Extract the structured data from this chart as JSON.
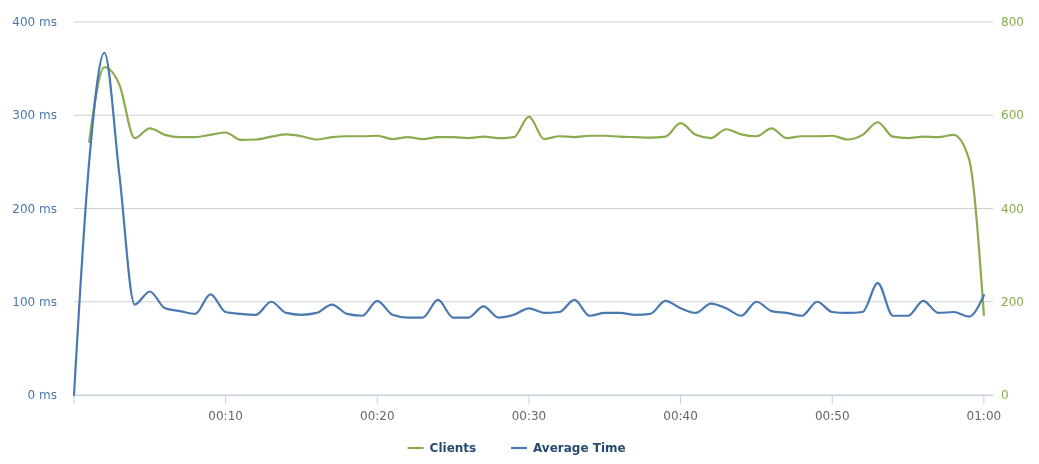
{
  "chart_data": {
    "type": "line",
    "x": [
      0,
      1,
      2,
      3,
      4,
      5,
      6,
      7,
      8,
      9,
      10,
      11,
      12,
      13,
      14,
      15,
      16,
      17,
      18,
      19,
      20,
      21,
      22,
      23,
      24,
      25,
      26,
      27,
      28,
      29,
      30,
      31,
      32,
      33,
      34,
      35,
      36,
      37,
      38,
      39,
      40,
      41,
      42,
      43,
      44,
      45,
      46,
      47,
      48,
      49,
      50,
      51,
      52,
      53,
      54,
      55,
      56,
      57,
      58,
      59,
      60
    ],
    "xlim": [
      0,
      60.6
    ],
    "xticks": [
      {
        "value": 0,
        "label": null
      },
      {
        "value": 10,
        "label": "00:10"
      },
      {
        "value": 20,
        "label": "00:20"
      },
      {
        "value": 30,
        "label": "00:30"
      },
      {
        "value": 40,
        "label": "00:40"
      },
      {
        "value": 50,
        "label": "00:50"
      },
      {
        "value": 60,
        "label": "01:00"
      }
    ],
    "ylim": [
      0,
      400
    ],
    "yticks": [
      {
        "value": 0,
        "label": "0 ms"
      },
      {
        "value": 100,
        "label": "100 ms"
      },
      {
        "value": 200,
        "label": "200 ms"
      },
      {
        "value": 300,
        "label": "300 ms"
      },
      {
        "value": 400,
        "label": "400 ms"
      }
    ],
    "y2lim": [
      0,
      800
    ],
    "y2ticks": [
      0,
      200,
      400,
      600,
      800
    ],
    "grid": "y",
    "legend": "bottom",
    "marker": "none",
    "series": [
      {
        "name": "Clients",
        "color": "#8aab4e",
        "axis": "y2",
        "values": [
          null,
          543,
          703,
          665,
          551,
          572,
          558,
          553,
          553,
          558,
          563,
          547,
          548,
          554,
          559,
          555,
          548,
          553,
          555,
          555,
          556,
          549,
          553,
          549,
          553,
          553,
          551,
          554,
          551,
          553,
          597,
          549,
          555,
          553,
          556,
          556,
          554,
          553,
          552,
          554,
          583,
          558,
          551,
          570,
          559,
          555,
          572,
          551,
          555,
          555,
          556,
          548,
          558,
          585,
          554,
          551,
          554,
          553,
          558,
          508,
          172
        ]
      },
      {
        "name": "Average Time",
        "color": "#4a78b0",
        "values": [
          0,
          250,
          367,
          235,
          97,
          111,
          93,
          90,
          87,
          108,
          89,
          87,
          86,
          100,
          88,
          86,
          88,
          97,
          87,
          85,
          101,
          86,
          83,
          83,
          102,
          83,
          83,
          95,
          83,
          86,
          93,
          88,
          89,
          102,
          85,
          88,
          88,
          86,
          87,
          101,
          93,
          88,
          98,
          93,
          85,
          100,
          90,
          88,
          85,
          100,
          89,
          88,
          89,
          120,
          85,
          85,
          101,
          88,
          89,
          84,
          107
        ]
      }
    ]
  }
}
